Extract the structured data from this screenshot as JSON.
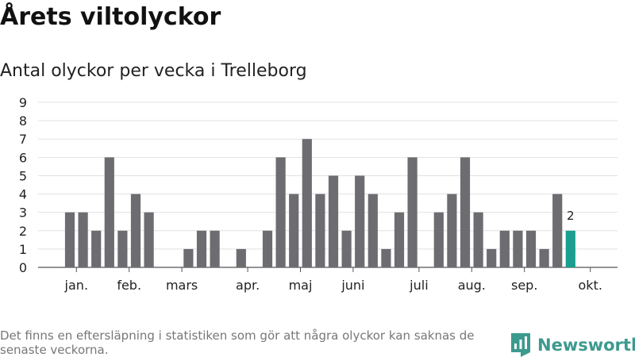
{
  "title": "Årets viltolyckor",
  "subtitle": "Antal olyckor per vecka i Trelleborg",
  "footnote": "Det finns en eftersläpning i statistiken som gör att några olyckor kan saknas de senaste veckorna.",
  "brand": {
    "name": "Newsworthy",
    "color": "#3c9a8e"
  },
  "chart_data": {
    "type": "bar",
    "title": "Årets viltolyckor",
    "subtitle": "Antal olyckor per vecka i Trelleborg",
    "x_unit": "week",
    "weeks": [
      2,
      3,
      4,
      5,
      6,
      7,
      8,
      9,
      10,
      11,
      12,
      13,
      14,
      15,
      16,
      17,
      18,
      19,
      20,
      21,
      22,
      23,
      24,
      25,
      26,
      27,
      28,
      29,
      30,
      31,
      32,
      33,
      34,
      35,
      36,
      37,
      38,
      39,
      40
    ],
    "values": [
      3,
      3,
      2,
      6,
      2,
      4,
      3,
      0,
      0,
      1,
      2,
      2,
      0,
      1,
      0,
      2,
      6,
      4,
      7,
      4,
      5,
      2,
      5,
      4,
      1,
      3,
      6,
      0,
      3,
      4,
      6,
      3,
      1,
      2,
      2,
      2,
      1,
      4,
      2
    ],
    "month_ticks": [
      {
        "label": "jan.",
        "week": 2.5
      },
      {
        "label": "feb.",
        "week": 6.5
      },
      {
        "label": "mars",
        "week": 10.5
      },
      {
        "label": "apr.",
        "week": 15.5
      },
      {
        "label": "maj",
        "week": 19.5
      },
      {
        "label": "juni",
        "week": 23.5
      },
      {
        "label": "juli",
        "week": 28.5
      },
      {
        "label": "aug.",
        "week": 32.5
      },
      {
        "label": "sep.",
        "week": 36.5
      },
      {
        "label": "okt.",
        "week": 41.5
      }
    ],
    "y_ticks": [
      0,
      1,
      2,
      3,
      4,
      5,
      6,
      7,
      8,
      9
    ],
    "ylim": [
      0,
      9
    ],
    "grid": true,
    "bar_color": "#6d6c71",
    "highlight_color": "#1a9e8f",
    "highlight_week": 40,
    "highlight_label": "2"
  }
}
